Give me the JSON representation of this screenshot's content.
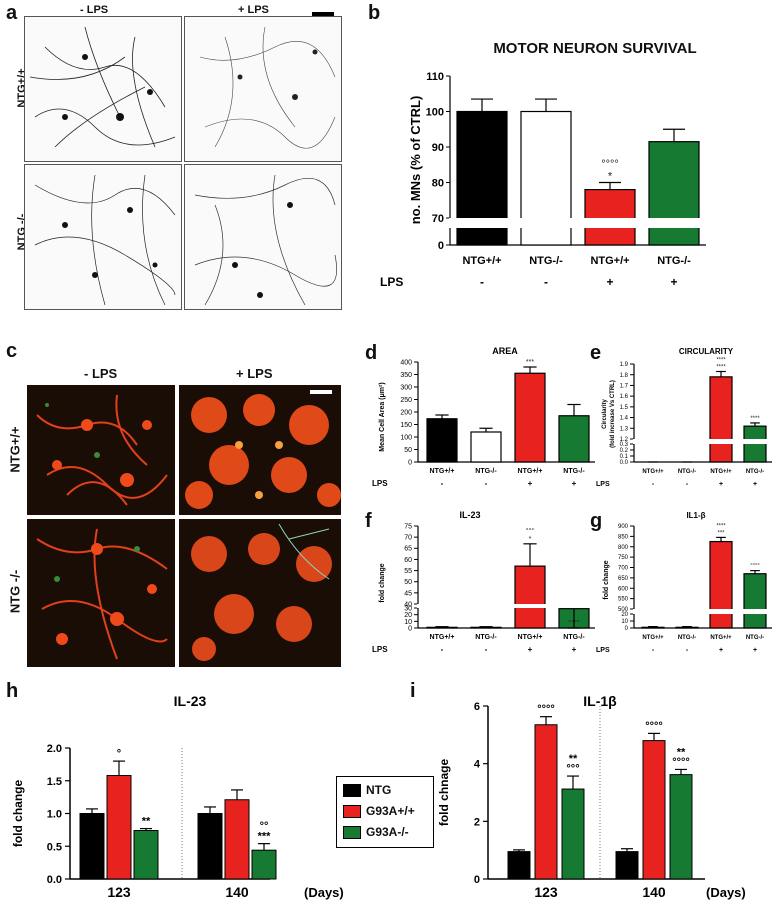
{
  "figure": {
    "panel_letters": [
      "a",
      "b",
      "c",
      "d",
      "e",
      "f",
      "g",
      "h",
      "i"
    ]
  },
  "panel_a": {
    "col_labels": [
      "- LPS",
      "+ LPS"
    ],
    "row_labels": [
      "NTG+/+",
      "NTG -/-"
    ]
  },
  "panel_c": {
    "col_labels": [
      "- LPS",
      "+ LPS"
    ],
    "row_labels": [
      "NTG+/+",
      "NTG -/-"
    ]
  },
  "colors": {
    "black": "#000000",
    "white": "#ffffff",
    "red": "#e8231f",
    "green": "#177a33"
  },
  "lps_row": {
    "label": "LPS",
    "values": [
      "-",
      "-",
      "+",
      "+"
    ]
  },
  "legend_h": {
    "items": [
      "NTG",
      "G93A+/+",
      "G93A-/-"
    ]
  },
  "chart_data": [
    {
      "id": "b",
      "type": "bar",
      "title": "MOTOR NEURON SURVIVAL",
      "ylabel": "no. MNs (% of CTRL)",
      "categories": [
        "NTG+/+",
        "NTG-/-",
        "NTG+/+",
        "NTG-/-"
      ],
      "values": [
        100,
        100,
        78,
        91.5
      ],
      "errors": [
        3.5,
        3.5,
        2,
        3.5
      ],
      "colors": [
        "#000000",
        "#ffffff",
        "#e8231f",
        "#177a33"
      ],
      "annotations": [
        "",
        "",
        "°°°°\n*",
        ""
      ],
      "yticks": [
        "0",
        "70",
        "80",
        "90",
        "100",
        "110"
      ],
      "broken_axis": [
        0,
        70,
        110
      ]
    },
    {
      "id": "d",
      "type": "bar",
      "title": "AREA",
      "ylabel": "Mean Cell Area (μm²)",
      "categories": [
        "NTG+/+",
        "NTG-/-",
        "NTG+/+",
        "NTG-/-"
      ],
      "values": [
        173,
        120,
        355,
        185
      ],
      "errors": [
        15,
        15,
        25,
        45
      ],
      "colors": [
        "#000000",
        "#ffffff",
        "#e8231f",
        "#177a33"
      ],
      "annotations": [
        "",
        "",
        "***",
        ""
      ],
      "ylim": [
        0,
        400
      ],
      "yticks": [
        "0",
        "50",
        "100",
        "150",
        "200",
        "250",
        "300",
        "350",
        "400"
      ]
    },
    {
      "id": "e",
      "type": "bar",
      "title": "CIRCULARITY",
      "ylabel": "Circularity (fold increase Vs CTRL)",
      "categories": [
        "NTG+/+",
        "NTG-/-",
        "NTG+/+",
        "NTG-/-"
      ],
      "values": [
        1.04,
        1.04,
        1.78,
        1.32
      ],
      "errors": [
        0.01,
        0.01,
        0.05,
        0.03
      ],
      "colors": [
        "#000000",
        "#ffffff",
        "#e8231f",
        "#177a33"
      ],
      "annotations": [
        "",
        "",
        "****\n****",
        "****"
      ],
      "yticks": [
        "0.0",
        "0.1",
        "0.2",
        "0.3",
        "1.2",
        "1.3",
        "1.4",
        "1.5",
        "1.6",
        "1.7",
        "1.8",
        "1.9"
      ],
      "broken_axis": [
        0,
        0.3,
        1.2,
        1.9
      ]
    },
    {
      "id": "f",
      "type": "bar",
      "title": "IL-23",
      "ylabel": "fold change",
      "categories": [
        "NTG+/+",
        "NTG-/-",
        "NTG+/+",
        "NTG-/-"
      ],
      "values": [
        1,
        1,
        57,
        29
      ],
      "errors": [
        1,
        1,
        10,
        2
      ],
      "colors": [
        "#000000",
        "#ffffff",
        "#e8231f",
        "#177a33"
      ],
      "annotations": [
        "",
        "",
        "°°°\n*",
        "°°°°"
      ],
      "yticks": [
        "0",
        "10",
        "20",
        "30",
        "40",
        "45",
        "50",
        "55",
        "60",
        "65",
        "70",
        "75"
      ],
      "broken_axis": [
        0,
        30,
        40,
        75
      ]
    },
    {
      "id": "g",
      "type": "bar",
      "title": "IL1-β",
      "ylabel": "fold change",
      "categories": [
        "NTG+/+",
        "NTG-/-",
        "NTG+/+",
        "NTG-/-"
      ],
      "values": [
        1,
        1,
        825,
        670
      ],
      "errors": [
        1,
        1,
        20,
        15
      ],
      "colors": [
        "#000000",
        "#ffffff",
        "#e8231f",
        "#177a33"
      ],
      "annotations": [
        "",
        "",
        "****\n***",
        "°°°°"
      ],
      "yticks": [
        "0",
        "10",
        "20",
        "500",
        "550",
        "600",
        "650",
        "700",
        "750",
        "800",
        "850",
        "900"
      ],
      "broken_axis": [
        0,
        20,
        500,
        900
      ]
    },
    {
      "id": "h",
      "type": "bar",
      "title": "IL-23",
      "ylabel": "fold change",
      "xlabel": "(Days)",
      "categories": [
        "123",
        "140"
      ],
      "series": [
        {
          "name": "NTG",
          "values": [
            1.0,
            1.0
          ],
          "errors": [
            0.07,
            0.1
          ],
          "color": "#000000"
        },
        {
          "name": "G93A+/+",
          "values": [
            1.58,
            1.21
          ],
          "errors": [
            0.22,
            0.15
          ],
          "color": "#e8231f"
        },
        {
          "name": "G93A-/-",
          "values": [
            0.74,
            0.44
          ],
          "errors": [
            0.03,
            0.1
          ],
          "color": "#177a33"
        }
      ],
      "annotations": [
        "",
        "°",
        "**",
        "",
        "",
        "°°\n***"
      ],
      "ylim": [
        0,
        2.0
      ],
      "yticks": [
        "0.0",
        "0.5",
        "1.0",
        "1.5",
        "2.0"
      ]
    },
    {
      "id": "i",
      "type": "bar",
      "title": "IL-1β",
      "ylabel": "fold chnage",
      "xlabel": "(Days)",
      "categories": [
        "123",
        "140"
      ],
      "series": [
        {
          "name": "NTG",
          "values": [
            0.95,
            0.95
          ],
          "errors": [
            0.06,
            0.1
          ],
          "color": "#000000"
        },
        {
          "name": "G93A+/+",
          "values": [
            5.35,
            4.8
          ],
          "errors": [
            0.28,
            0.25
          ],
          "color": "#e8231f"
        },
        {
          "name": "G93A-/-",
          "values": [
            3.12,
            3.62
          ],
          "errors": [
            0.45,
            0.18
          ],
          "color": "#177a33"
        }
      ],
      "annotations": [
        "",
        "°°°°",
        "**\n°°°",
        "",
        "°°°°",
        "**\n°°°°"
      ],
      "ylim": [
        0,
        6
      ],
      "yticks": [
        "0",
        "2",
        "4",
        "6"
      ]
    }
  ]
}
